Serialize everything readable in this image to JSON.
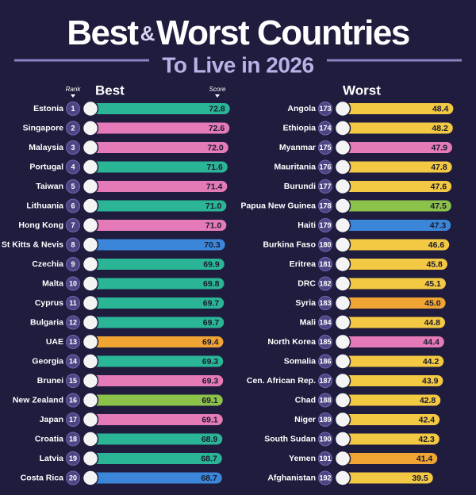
{
  "header": {
    "title": {
      "first": "Best",
      "joiner": "&",
      "rest": "Worst Countries"
    },
    "subtitle": "To Live in 2026"
  },
  "chart_data": [
    {
      "type": "bar",
      "orientation": "horizontal",
      "title": "Best",
      "rank_header": "Rank",
      "value_header": "Score",
      "categories": [
        "Estonia",
        "Singapore",
        "Malaysia",
        "Portugal",
        "Taiwan",
        "Lithuania",
        "Hong Kong",
        "St Kitts & Nevis",
        "Czechia",
        "Malta",
        "Cyprus",
        "Bulgaria",
        "UAE",
        "Georgia",
        "Brunei",
        "New Zealand",
        "Japan",
        "Croatia",
        "Latvia",
        "Costa Rica"
      ],
      "ranks": [
        1,
        2,
        3,
        4,
        5,
        6,
        7,
        8,
        9,
        10,
        11,
        12,
        13,
        14,
        15,
        16,
        17,
        18,
        19,
        20
      ],
      "values": [
        72.8,
        72.6,
        72.0,
        71.6,
        71.4,
        71.0,
        71.0,
        70.3,
        69.9,
        69.8,
        69.7,
        69.7,
        69.4,
        69.3,
        69.3,
        69.1,
        69.1,
        68.9,
        68.7,
        68.7
      ],
      "value_labels": [
        "72.8",
        "72.6",
        "72.0",
        "71.6",
        "71.4",
        "71.0",
        "71.0",
        "70.3",
        "69.9",
        "69.8",
        "69.7",
        "69.7",
        "69.4",
        "69.3",
        "69.3",
        "69.1",
        "69.1",
        "68.9",
        "68.7",
        "68.7"
      ],
      "colors": [
        "#2bb597",
        "#e57ab8",
        "#e57ab8",
        "#2bb597",
        "#e57ab8",
        "#2bb597",
        "#e57ab8",
        "#3b86d8",
        "#2bb597",
        "#2bb597",
        "#2bb597",
        "#2bb597",
        "#f0a433",
        "#2bb597",
        "#e57ab8",
        "#8cc24a",
        "#e57ab8",
        "#2bb597",
        "#2bb597",
        "#3b86d8"
      ],
      "xlim": [
        0,
        75
      ]
    },
    {
      "type": "bar",
      "orientation": "horizontal",
      "title": "Worst",
      "categories": [
        "Angola",
        "Ethiopia",
        "Myanmar",
        "Mauritania",
        "Burundi",
        "Papua New Guinea",
        "Haiti",
        "Burkina Faso",
        "Eritrea",
        "DRC",
        "Syria",
        "Mali",
        "North Korea",
        "Somalia",
        "Cen. African Rep.",
        "Chad",
        "Niger",
        "South Sudan",
        "Yemen",
        "Afghanistan"
      ],
      "ranks": [
        173,
        174,
        175,
        176,
        177,
        178,
        179,
        180,
        181,
        182,
        183,
        184,
        185,
        186,
        187,
        188,
        189,
        190,
        191,
        192
      ],
      "values": [
        48.4,
        48.2,
        47.9,
        47.8,
        47.6,
        47.5,
        47.3,
        46.6,
        45.8,
        45.1,
        45.0,
        44.8,
        44.4,
        44.2,
        43.9,
        42.8,
        42.4,
        42.3,
        41.4,
        39.5
      ],
      "value_labels": [
        "48.4",
        "48.2",
        "47.9",
        "47.8",
        "47.6",
        "47.5",
        "47.3",
        "46.6",
        "45.8",
        "45.1",
        "45.0",
        "44.8",
        "44.4",
        "44.2",
        "43.9",
        "42.8",
        "42.4",
        "42.3",
        "41.4",
        "39.5"
      ],
      "colors": [
        "#f3c843",
        "#f3c843",
        "#e57ab8",
        "#f3c843",
        "#f3c843",
        "#8cc24a",
        "#3b86d8",
        "#f3c843",
        "#f3c843",
        "#f3c843",
        "#f0a433",
        "#f3c843",
        "#e57ab8",
        "#f3c843",
        "#f3c843",
        "#f3c843",
        "#f3c843",
        "#f3c843",
        "#f0a433",
        "#f3c843"
      ],
      "xlim": [
        0,
        50
      ]
    }
  ]
}
